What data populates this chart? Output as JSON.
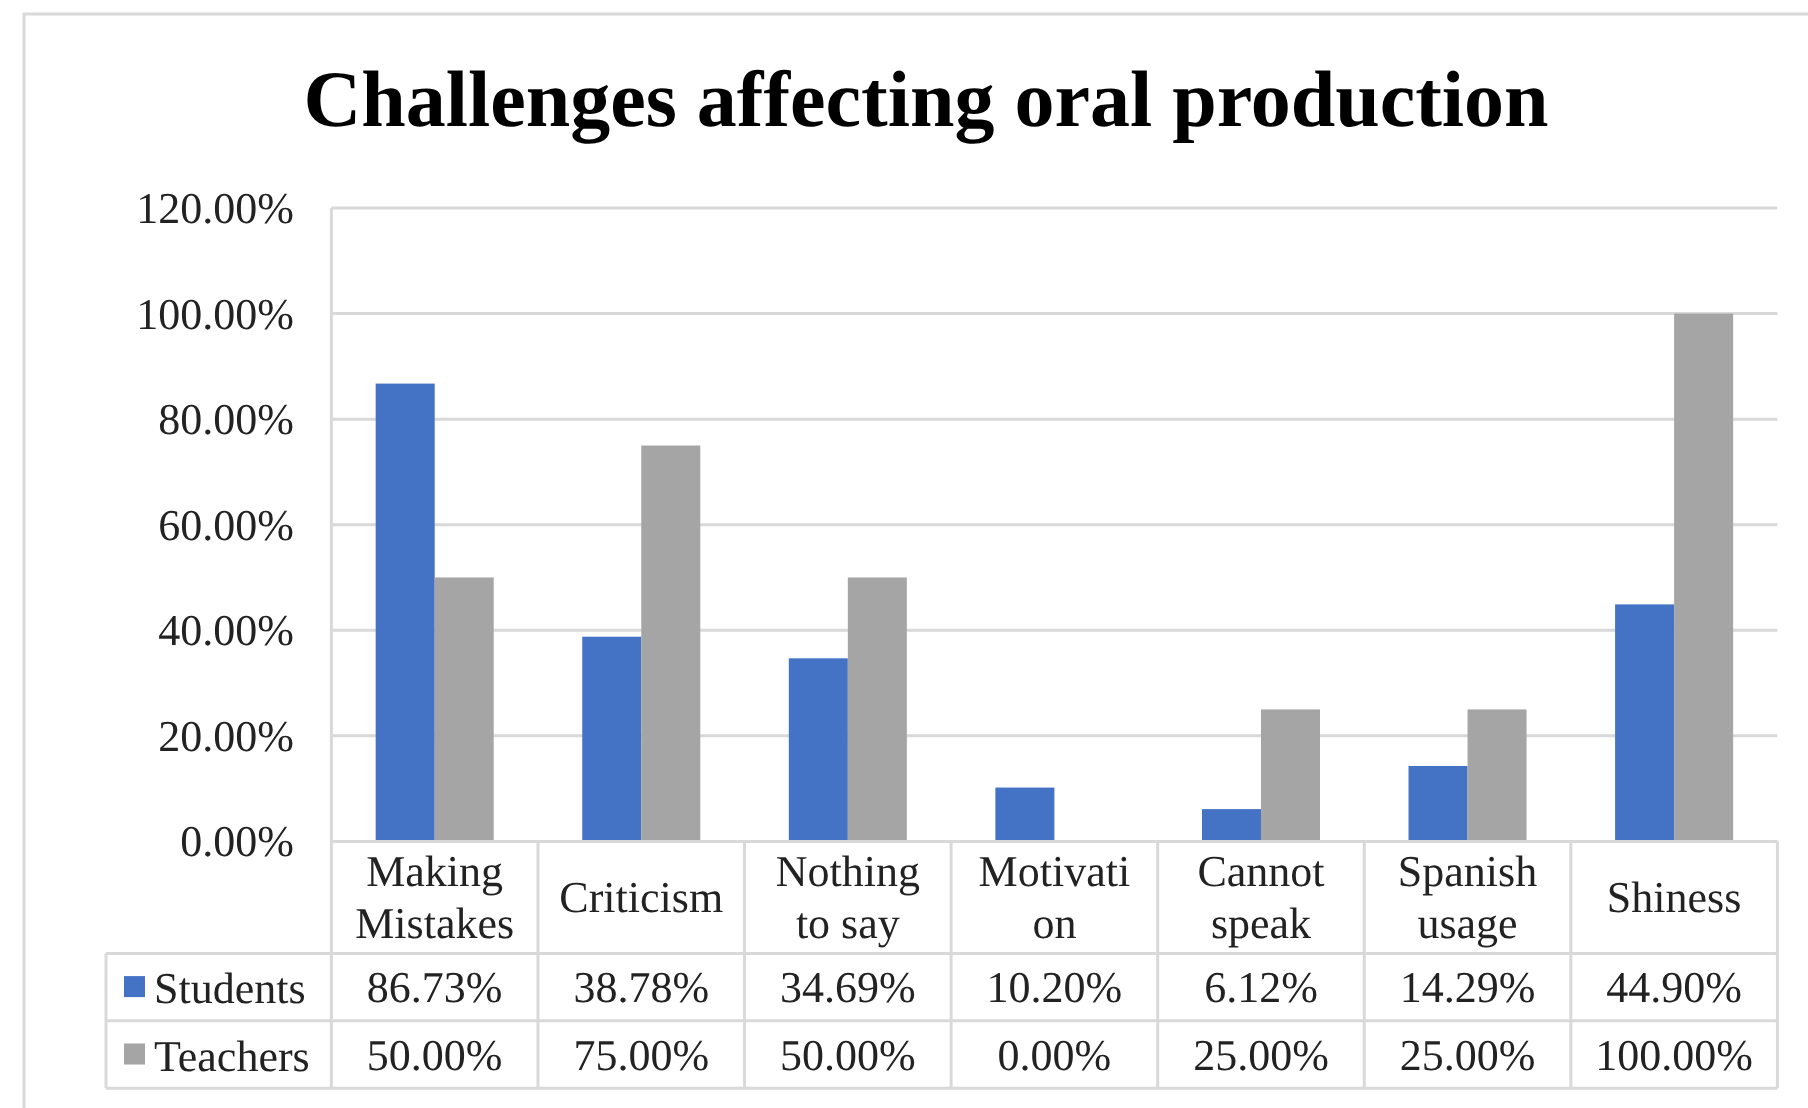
{
  "chart_data": {
    "type": "bar",
    "title": "Challenges affecting oral production",
    "categories": [
      "Making Mistakes",
      "Criticism",
      "Nothing to say",
      "Motivation",
      "Cannot speak",
      "Spanish usage",
      "Shiness"
    ],
    "series": [
      {
        "name": "Students",
        "color": "#4472c4",
        "values": [
          86.73,
          38.78,
          34.69,
          10.2,
          6.12,
          14.29,
          44.9
        ],
        "value_labels": [
          "86.73%",
          "38.78%",
          "34.69%",
          "10.20%",
          "6.12%",
          "14.29%",
          "44.90%"
        ]
      },
      {
        "name": "Teachers",
        "color": "#a5a5a5",
        "values": [
          50,
          75,
          50,
          0,
          25,
          25,
          100
        ],
        "value_labels": [
          "50.00%",
          "75.00%",
          "50.00%",
          "0.00%",
          "25.00%",
          "25.00%",
          "100.00%"
        ]
      }
    ],
    "ylim": [
      0,
      120
    ],
    "yticks": [
      {
        "value": 0,
        "label": "0.00%"
      },
      {
        "value": 20,
        "label": "20.00%"
      },
      {
        "value": 40,
        "label": "40.00%"
      },
      {
        "value": 60,
        "label": "60.00%"
      },
      {
        "value": 80,
        "label": "80.00%"
      },
      {
        "value": 100,
        "label": "100.00%"
      },
      {
        "value": 120,
        "label": "120.00%"
      }
    ],
    "grid": "y",
    "legend": "bottom"
  }
}
